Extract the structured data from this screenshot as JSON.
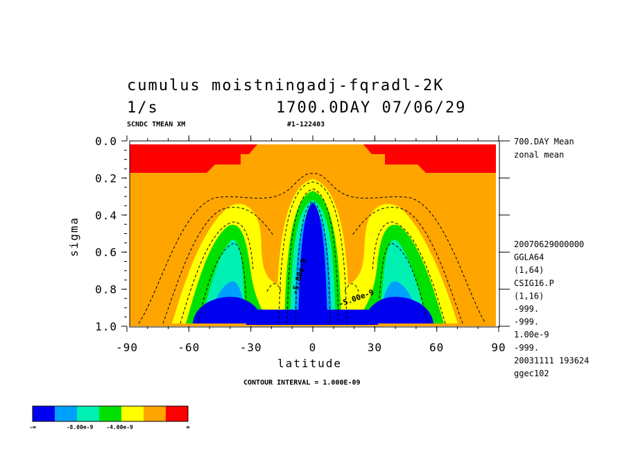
{
  "header": {
    "title_line1": "cumulus moistningadj-fqradl-2K",
    "units": "1/s",
    "time": "1700.0DAY 07/06/29",
    "subtitle_left": "SCNDC TMEAN XM",
    "subtitle_right": "#1-122403"
  },
  "side_info": {
    "top": [
      "700.DAY Mean",
      "zonal mean"
    ],
    "meta": [
      "20070629000000",
      "GGLA64",
      "(1,64)",
      "CSIG16.P",
      "(1,16)",
      "-999.",
      "-999.",
      "1.00e-9",
      "-999.",
      "20031111 193624",
      "ggec102"
    ]
  },
  "footer": {
    "contour_interval": "CONTOUR INTERVAL = 1.000E-09"
  },
  "colorbar": {
    "colors": [
      "#0000f0",
      "#00a0ff",
      "#00f0b4",
      "#00e000",
      "#ffff00",
      "#ffa500",
      "#ff0000"
    ],
    "labels": [
      "-∞",
      "-8.00e-9",
      "-4.00e-9",
      "∞"
    ]
  },
  "chart_data": {
    "type": "contour",
    "xlabel": "latitude",
    "ylabel": "sigma",
    "xlim": [
      -90,
      90
    ],
    "ylim": [
      1.0,
      0.0
    ],
    "x_ticks": [
      "-90",
      "-60",
      "-30",
      "0",
      "30",
      "60",
      "90"
    ],
    "y_ticks": [
      "0.0",
      "0.2",
      "0.4",
      "0.6",
      "0.8",
      "1.0"
    ],
    "contour_labels": [
      "-5.00e-9",
      "-5.00e-9"
    ],
    "levels": [
      -1e-08,
      -8e-09,
      -4e-09,
      0,
      4e-09
    ],
    "regions": [
      {
        "color": "#ff0000",
        "description_level": "> 4.00e-9",
        "lat_range": [
          -90,
          -28
        ],
        "sigma_range": [
          0.02,
          0.18
        ]
      },
      {
        "color": "#ff0000",
        "description_level": "> 4.00e-9",
        "lat_range": [
          24,
          90
        ],
        "sigma_range": [
          0.02,
          0.18
        ]
      },
      {
        "color": "#0000f0",
        "description_level": "< -8.00e-9",
        "lat_range": [
          -5,
          5
        ],
        "sigma_range": [
          0.33,
          1.0
        ]
      }
    ]
  }
}
